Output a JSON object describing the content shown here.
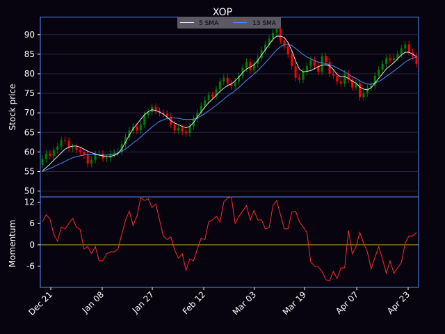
{
  "chart_data": [
    {
      "type": "candlestick",
      "title": "XOP",
      "ylabel": "Stock price",
      "ylim": [
        48.5,
        94.5
      ],
      "yticks": [
        50,
        55,
        60,
        65,
        70,
        75,
        80,
        85,
        90
      ],
      "grid": true,
      "legend": {
        "placement": "top-center",
        "entries": [
          "5 SMA",
          "13 SMA"
        ]
      },
      "colors": {
        "up": "#008000",
        "down": "#ff0000",
        "sma5": "#ffffff",
        "sma13": "#4a90ff",
        "frame": "#5a8dff",
        "background": "#07040f"
      },
      "series": [
        {
          "name": "Close",
          "values": [
            58.2,
            59.6,
            59.0,
            60.5,
            61.4,
            63.0,
            62.8,
            61.0,
            61.2,
            60.5,
            60.0,
            59.2,
            57.0,
            58.0,
            59.4,
            59.5,
            58.3,
            58.5,
            59.5,
            59.8,
            60.0,
            62.0,
            63.8,
            65.5,
            66.5,
            65.5,
            67.0,
            69.5,
            70.2,
            71.5,
            70.5,
            70.0,
            69.8,
            69.0,
            67.0,
            65.5,
            66.2,
            65.2,
            64.8,
            66.5,
            68.5,
            70.0,
            71.8,
            73.2,
            74.5,
            74.2,
            76.0,
            78.0,
            79.0,
            77.5,
            76.8,
            78.0,
            79.5,
            81.5,
            83.0,
            81.0,
            82.5,
            84.0,
            86.0,
            87.5,
            89.0,
            90.5,
            91.5,
            88.5,
            87.0,
            85.0,
            82.0,
            79.0,
            78.5,
            80.5,
            82.0,
            83.5,
            82.0,
            80.5,
            84.5,
            83.0,
            80.0,
            79.5,
            78.0,
            77.5,
            80.0,
            78.5,
            76.5,
            77.5,
            74.0,
            75.0,
            76.5,
            77.0,
            79.5,
            81.0,
            82.5,
            84.0,
            83.5,
            84.0,
            85.0,
            86.5,
            87.5,
            85.5,
            84.5,
            82.5
          ]
        },
        {
          "name": "5 SMA",
          "values": [
            55.2,
            56.0,
            56.9,
            57.9,
            58.8,
            59.8,
            60.7,
            61.2,
            61.5,
            61.5,
            61.2,
            60.7,
            60.2,
            59.8,
            59.5,
            59.2,
            59.0,
            58.8,
            58.9,
            59.1,
            59.6,
            60.8,
            62.5,
            64.3,
            65.9,
            67.1,
            68.3,
            69.5,
            70.3,
            70.8,
            70.6,
            70.2,
            69.7,
            68.9,
            68.0,
            67.4,
            67.0,
            66.5,
            66.2,
            66.5,
            67.5,
            68.9,
            70.2,
            71.5,
            72.6,
            73.5,
            74.5,
            75.5,
            76.3,
            77.0,
            77.4,
            78.2,
            79.2,
            80.3,
            81.2,
            81.7,
            82.3,
            83.4,
            84.8,
            86.1,
            87.5,
            88.8,
            89.6,
            89.6,
            89.3,
            88.0,
            85.9,
            83.3,
            81.2,
            80.5,
            80.6,
            80.8,
            81.3,
            81.8,
            82.2,
            82.3,
            82.0,
            81.1,
            79.8,
            79.2,
            79.3,
            78.8,
            78.1,
            77.6,
            76.6,
            76.1,
            75.9,
            76.4,
            77.6,
            78.8,
            80.0,
            81.2,
            82.0,
            82.8,
            83.8,
            84.8,
            85.5,
            85.5,
            85.0,
            84.4
          ]
        },
        {
          "name": "13 SMA",
          "values": [
            55.0,
            55.4,
            55.8,
            56.2,
            56.7,
            57.1,
            57.6,
            58.1,
            58.5,
            58.8,
            59.0,
            59.2,
            59.3,
            59.3,
            59.3,
            59.2,
            59.2,
            59.2,
            59.3,
            59.4,
            59.7,
            60.2,
            60.8,
            61.5,
            62.3,
            63.0,
            63.8,
            64.7,
            65.5,
            66.4,
            67.1,
            67.8,
            68.2,
            68.6,
            68.7,
            68.7,
            68.6,
            68.4,
            68.3,
            68.3,
            68.4,
            68.7,
            69.2,
            69.8,
            70.5,
            71.2,
            71.9,
            72.7,
            73.5,
            74.3,
            75.0,
            75.7,
            76.5,
            77.4,
            78.3,
            79.1,
            79.9,
            80.8,
            81.8,
            82.8,
            83.9,
            85.0,
            86.1,
            86.9,
            87.5,
            87.6,
            87.2,
            86.5,
            85.7,
            84.9,
            84.3,
            83.8,
            83.4,
            83.0,
            82.8,
            82.6,
            82.3,
            82.0,
            81.5,
            81.0,
            80.5,
            79.9,
            79.3,
            78.8,
            78.2,
            77.7,
            77.4,
            77.3,
            77.6,
            78.0,
            78.6,
            79.3,
            80.0,
            80.7,
            81.4,
            82.2,
            83.0,
            83.6,
            84.0,
            84.3
          ]
        }
      ]
    },
    {
      "type": "line",
      "ylabel": "Momentum",
      "ylim": [
        -12,
        13.5
      ],
      "yticks": [
        -6,
        0,
        6,
        12
      ],
      "x_tick_labels": [
        "Dec 21",
        "Jan 08",
        "Jan 27",
        "Feb 12",
        "Mar 03",
        "Mar 19",
        "Apr 07",
        "Apr 23"
      ],
      "colors": {
        "line": "#ff2a2a",
        "zero": "#b8a038"
      },
      "series": [
        {
          "name": "Momentum",
          "values": [
            6.5,
            8.5,
            7.2,
            3.0,
            1.0,
            5.0,
            4.5,
            6.0,
            7.5,
            5.0,
            4.3,
            -1.2,
            -0.5,
            -2.5,
            -0.5,
            -4.5,
            -4.5,
            -2.5,
            -2.0,
            -2.0,
            -1.2,
            3.0,
            7.0,
            9.5,
            5.5,
            8.0,
            13.2,
            12.5,
            13.0,
            10.5,
            11.5,
            7.0,
            2.5,
            1.5,
            2.2,
            -1.5,
            -3.8,
            -2.5,
            -7.2,
            -4.0,
            -4.5,
            -1.2,
            1.8,
            1.5,
            6.5,
            7.0,
            8.0,
            6.5,
            12.0,
            13.2,
            13.5,
            6.0,
            8.0,
            9.5,
            11.0,
            7.0,
            9.7,
            7.0,
            7.0,
            4.5,
            4.8,
            11.0,
            12.5,
            8.5,
            4.5,
            4.5,
            9.2,
            9.5,
            6.5,
            5.0,
            3.5,
            -4.8,
            -6.0,
            -6.2,
            -7.5,
            -9.8,
            -10.2,
            -7.5,
            -9.5,
            -6.5,
            -6.5,
            4.0,
            -2.5,
            -0.5,
            3.5,
            0.5,
            -2.0,
            -6.8,
            -3.5,
            -0.5,
            -4.0,
            -8.0,
            -4.5,
            -8.0,
            -6.5,
            -5.0,
            0.5,
            2.5,
            2.5,
            3.5
          ]
        }
      ]
    }
  ]
}
